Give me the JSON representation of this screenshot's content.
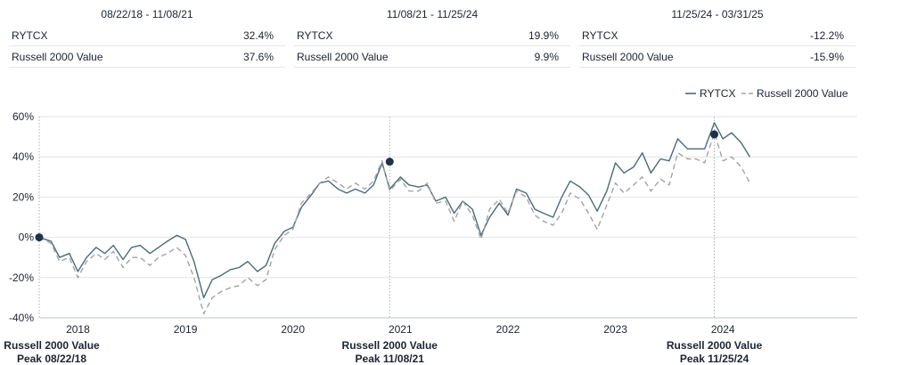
{
  "periods": [
    {
      "range": "08/22/18 - 11/08/21",
      "fund": "RYTCX",
      "fund_return": "32.4%",
      "index": "Russell 2000 Value",
      "index_return": "37.6%"
    },
    {
      "range": "11/08/21 - 11/25/24",
      "fund": "RYTCX",
      "fund_return": "19.9%",
      "index": "Russell 2000 Value",
      "index_return": "9.9%"
    },
    {
      "range": "11/25/24 - 03/31/25",
      "fund": "RYTCX",
      "fund_return": "-12.2%",
      "index": "Russell 2000 Value",
      "index_return": "-15.9%"
    }
  ],
  "colors": {
    "fund": "#4a6b78",
    "index": "#a3a3a3",
    "marker": "#1f3049",
    "grid": "#e4e4e4",
    "text": "#1c2430"
  },
  "chart_data": {
    "type": "line",
    "ylim": [
      -40,
      60
    ],
    "xlim": [
      2017.64,
      2025.25
    ],
    "yticks": [
      -40,
      -20,
      0,
      20,
      40,
      60
    ],
    "ytick_labels": [
      "-40%",
      "-20%",
      "0%",
      "20%",
      "40%",
      "60%"
    ],
    "xticks": [
      2018,
      2019,
      2020,
      2021,
      2022,
      2023,
      2024
    ],
    "xtick_labels": [
      "2018",
      "2019",
      "2020",
      "2021",
      "2022",
      "2023",
      "2024"
    ],
    "legend_position": "top-right",
    "series": [
      {
        "name": "RYTCX",
        "style": "solid",
        "x": [
          2017.64,
          2017.75,
          2017.83,
          2017.92,
          2018.0,
          2018.08,
          2018.17,
          2018.25,
          2018.33,
          2018.42,
          2018.5,
          2018.58,
          2018.67,
          2018.75,
          2018.83,
          2018.92,
          2019.0,
          2019.08,
          2019.17,
          2019.25,
          2019.33,
          2019.42,
          2019.5,
          2019.58,
          2019.67,
          2019.75,
          2019.83,
          2019.92,
          2020.0,
          2020.08,
          2020.17,
          2020.25,
          2020.33,
          2020.42,
          2020.5,
          2020.58,
          2020.67,
          2020.75,
          2020.83,
          2020.9,
          2021.0,
          2021.08,
          2021.17,
          2021.25,
          2021.33,
          2021.42,
          2021.5,
          2021.58,
          2021.67,
          2021.75,
          2021.83,
          2021.92,
          2022.0,
          2022.08,
          2022.17,
          2022.25,
          2022.33,
          2022.42,
          2022.5,
          2022.58,
          2022.67,
          2022.75,
          2022.83,
          2022.92,
          2023.0,
          2023.08,
          2023.17,
          2023.25,
          2023.33,
          2023.42,
          2023.5,
          2023.58,
          2023.67,
          2023.75,
          2023.83,
          2023.92,
          2024.0,
          2024.08,
          2024.17,
          2024.25
        ],
        "y": [
          0,
          -2,
          -10,
          -8,
          -17,
          -10,
          -5,
          -8,
          -4,
          -11,
          -5,
          -4,
          -8,
          -5,
          -2,
          1,
          -1,
          -12,
          -30,
          -21,
          -19,
          -16,
          -15,
          -12,
          -17,
          -14,
          -3,
          3,
          5,
          15,
          21,
          27,
          28,
          24,
          22,
          24,
          22,
          26,
          37,
          24,
          30,
          26,
          25,
          26,
          18,
          20,
          12,
          18,
          14,
          1,
          10,
          17,
          11,
          24,
          22,
          14,
          12,
          10,
          20,
          28,
          25,
          21,
          13,
          23,
          37,
          32,
          35,
          42,
          32,
          39,
          38,
          49,
          44,
          44,
          44,
          57,
          49,
          52,
          47,
          40
        ]
      },
      {
        "name": "Russell 2000 Value",
        "style": "dashed",
        "x": [
          2017.64,
          2017.75,
          2017.83,
          2017.92,
          2018.0,
          2018.08,
          2018.17,
          2018.25,
          2018.33,
          2018.42,
          2018.5,
          2018.58,
          2018.67,
          2018.75,
          2018.83,
          2018.92,
          2019.0,
          2019.08,
          2019.17,
          2019.25,
          2019.33,
          2019.42,
          2019.5,
          2019.58,
          2019.67,
          2019.75,
          2019.83,
          2019.92,
          2020.0,
          2020.08,
          2020.17,
          2020.25,
          2020.33,
          2020.42,
          2020.5,
          2020.58,
          2020.67,
          2020.75,
          2020.83,
          2020.9,
          2021.0,
          2021.08,
          2021.17,
          2021.25,
          2021.33,
          2021.42,
          2021.5,
          2021.58,
          2021.67,
          2021.75,
          2021.83,
          2021.92,
          2022.0,
          2022.08,
          2022.17,
          2022.25,
          2022.33,
          2022.42,
          2022.5,
          2022.58,
          2022.67,
          2022.75,
          2022.83,
          2022.92,
          2023.0,
          2023.08,
          2023.17,
          2023.25,
          2023.33,
          2023.42,
          2023.5,
          2023.58,
          2023.67,
          2023.75,
          2023.83,
          2023.92,
          2024.0,
          2024.08,
          2024.17,
          2024.25
        ],
        "y": [
          0,
          -3,
          -12,
          -10,
          -20,
          -12,
          -8,
          -11,
          -7,
          -15,
          -10,
          -10,
          -14,
          -10,
          -8,
          -5,
          -9,
          -20,
          -38,
          -30,
          -27,
          -25,
          -24,
          -20,
          -24,
          -21,
          -6,
          1,
          4,
          17,
          22,
          27,
          30,
          27,
          24,
          27,
          24,
          28,
          38,
          23,
          29,
          23,
          23,
          27,
          17,
          18,
          8,
          18,
          11,
          -1,
          14,
          19,
          12,
          23,
          20,
          11,
          8,
          6,
          12,
          22,
          19,
          12,
          4,
          16,
          27,
          22,
          26,
          30,
          23,
          29,
          26,
          42,
          39,
          39,
          37,
          52,
          38,
          40,
          35,
          27
        ]
      }
    ],
    "peaks": [
      {
        "x": 2017.64,
        "y": 0,
        "label_line1": "Russell 2000 Value",
        "label_line2": "Peak 08/22/18"
      },
      {
        "x": 2020.9,
        "y": 37.6,
        "label_line1": "Russell 2000 Value",
        "label_line2": "Peak 11/08/21"
      },
      {
        "x": 2023.92,
        "y": 51.2,
        "label_line1": "Russell 2000 Value",
        "label_line2": "Peak 11/25/24"
      }
    ]
  }
}
